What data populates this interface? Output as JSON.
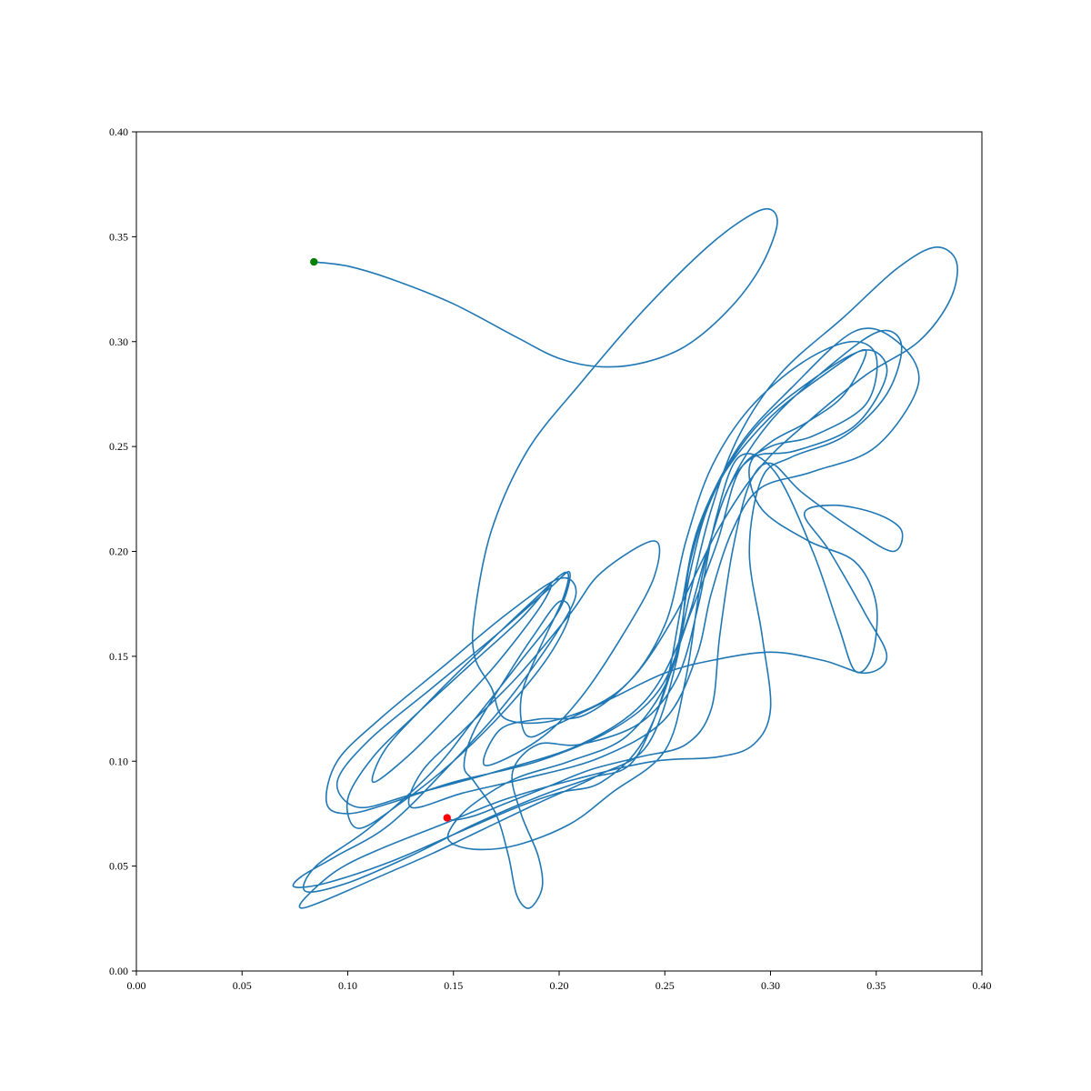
{
  "chart_data": {
    "type": "line",
    "title": "",
    "xlabel": "",
    "ylabel": "",
    "xlim": [
      0.0,
      0.4
    ],
    "ylim": [
      0.0,
      0.4
    ],
    "grid": false,
    "x_ticks": [
      "0.00",
      "0.05",
      "0.10",
      "0.15",
      "0.20",
      "0.25",
      "0.30",
      "0.35",
      "0.40"
    ],
    "y_ticks": [
      "0.00",
      "0.05",
      "0.10",
      "0.15",
      "0.20",
      "0.25",
      "0.30",
      "0.35",
      "0.40"
    ],
    "series": [
      {
        "color": "#1f77b4",
        "points": [
          [
            0.084,
            0.338
          ],
          [
            0.1,
            0.336
          ],
          [
            0.12,
            0.33
          ],
          [
            0.15,
            0.318
          ],
          [
            0.18,
            0.302
          ],
          [
            0.2,
            0.292
          ],
          [
            0.22,
            0.288
          ],
          [
            0.24,
            0.29
          ],
          [
            0.26,
            0.298
          ],
          [
            0.28,
            0.315
          ],
          [
            0.295,
            0.335
          ],
          [
            0.303,
            0.355
          ],
          [
            0.3,
            0.363
          ],
          [
            0.29,
            0.36
          ],
          [
            0.27,
            0.345
          ],
          [
            0.24,
            0.315
          ],
          [
            0.21,
            0.28
          ],
          [
            0.185,
            0.248
          ],
          [
            0.168,
            0.21
          ],
          [
            0.16,
            0.17
          ],
          [
            0.16,
            0.15
          ],
          [
            0.168,
            0.135
          ],
          [
            0.175,
            0.12
          ],
          [
            0.2,
            0.12
          ],
          [
            0.23,
            0.135
          ],
          [
            0.25,
            0.165
          ],
          [
            0.26,
            0.205
          ],
          [
            0.272,
            0.24
          ],
          [
            0.29,
            0.268
          ],
          [
            0.315,
            0.29
          ],
          [
            0.338,
            0.3
          ],
          [
            0.35,
            0.293
          ],
          [
            0.345,
            0.27
          ],
          [
            0.32,
            0.255
          ],
          [
            0.3,
            0.25
          ],
          [
            0.285,
            0.238
          ],
          [
            0.275,
            0.205
          ],
          [
            0.262,
            0.17
          ],
          [
            0.248,
            0.135
          ],
          [
            0.225,
            0.115
          ],
          [
            0.19,
            0.1
          ],
          [
            0.15,
            0.09
          ],
          [
            0.12,
            0.08
          ],
          [
            0.1,
            0.075
          ],
          [
            0.09,
            0.08
          ],
          [
            0.095,
            0.1
          ],
          [
            0.115,
            0.12
          ],
          [
            0.145,
            0.145
          ],
          [
            0.175,
            0.17
          ],
          [
            0.2,
            0.187
          ],
          [
            0.208,
            0.18
          ],
          [
            0.198,
            0.16
          ],
          [
            0.175,
            0.128
          ],
          [
            0.15,
            0.1
          ],
          [
            0.12,
            0.07
          ],
          [
            0.095,
            0.055
          ],
          [
            0.078,
            0.045
          ],
          [
            0.075,
            0.04
          ],
          [
            0.09,
            0.042
          ],
          [
            0.12,
            0.052
          ],
          [
            0.15,
            0.065
          ],
          [
            0.18,
            0.078
          ],
          [
            0.2,
            0.085
          ],
          [
            0.22,
            0.09
          ],
          [
            0.24,
            0.11
          ],
          [
            0.255,
            0.15
          ],
          [
            0.262,
            0.19
          ],
          [
            0.272,
            0.225
          ],
          [
            0.292,
            0.258
          ],
          [
            0.32,
            0.282
          ],
          [
            0.345,
            0.296
          ],
          [
            0.355,
            0.285
          ],
          [
            0.34,
            0.26
          ],
          [
            0.312,
            0.248
          ],
          [
            0.292,
            0.245
          ],
          [
            0.28,
            0.23
          ],
          [
            0.27,
            0.2
          ],
          [
            0.258,
            0.16
          ],
          [
            0.24,
            0.128
          ],
          [
            0.21,
            0.108
          ],
          [
            0.17,
            0.095
          ],
          [
            0.13,
            0.084
          ],
          [
            0.105,
            0.078
          ],
          [
            0.095,
            0.09
          ],
          [
            0.11,
            0.11
          ],
          [
            0.14,
            0.135
          ],
          [
            0.17,
            0.16
          ],
          [
            0.195,
            0.182
          ],
          [
            0.205,
            0.19
          ],
          [
            0.2,
            0.172
          ],
          [
            0.182,
            0.148
          ],
          [
            0.16,
            0.12
          ],
          [
            0.14,
            0.095
          ],
          [
            0.11,
            0.068
          ],
          [
            0.085,
            0.05
          ],
          [
            0.08,
            0.038
          ],
          [
            0.1,
            0.042
          ],
          [
            0.13,
            0.055
          ],
          [
            0.16,
            0.07
          ],
          [
            0.19,
            0.083
          ],
          [
            0.215,
            0.092
          ],
          [
            0.235,
            0.1
          ],
          [
            0.25,
            0.135
          ],
          [
            0.258,
            0.175
          ],
          [
            0.266,
            0.212
          ],
          [
            0.285,
            0.25
          ],
          [
            0.31,
            0.278
          ],
          [
            0.34,
            0.305
          ],
          [
            0.36,
            0.3
          ],
          [
            0.37,
            0.28
          ],
          [
            0.35,
            0.25
          ],
          [
            0.32,
            0.238
          ],
          [
            0.295,
            0.23
          ],
          [
            0.282,
            0.21
          ],
          [
            0.272,
            0.18
          ],
          [
            0.265,
            0.15
          ],
          [
            0.25,
            0.12
          ],
          [
            0.22,
            0.102
          ],
          [
            0.185,
            0.092
          ],
          [
            0.155,
            0.085
          ],
          [
            0.13,
            0.078
          ],
          [
            0.135,
            0.095
          ],
          [
            0.155,
            0.115
          ],
          [
            0.18,
            0.14
          ],
          [
            0.205,
            0.17
          ],
          [
            0.22,
            0.19
          ],
          [
            0.245,
            0.205
          ],
          [
            0.245,
            0.188
          ],
          [
            0.23,
            0.16
          ],
          [
            0.21,
            0.13
          ],
          [
            0.19,
            0.11
          ],
          [
            0.165,
            0.098
          ],
          [
            0.172,
            0.115
          ],
          [
            0.19,
            0.12
          ],
          [
            0.212,
            0.122
          ],
          [
            0.235,
            0.14
          ],
          [
            0.255,
            0.17
          ],
          [
            0.275,
            0.21
          ],
          [
            0.295,
            0.24
          ],
          [
            0.318,
            0.262
          ],
          [
            0.345,
            0.284
          ],
          [
            0.37,
            0.3
          ],
          [
            0.385,
            0.32
          ],
          [
            0.388,
            0.338
          ],
          [
            0.378,
            0.345
          ],
          [
            0.36,
            0.335
          ],
          [
            0.335,
            0.312
          ],
          [
            0.305,
            0.285
          ],
          [
            0.285,
            0.255
          ],
          [
            0.272,
            0.22
          ],
          [
            0.262,
            0.18
          ],
          [
            0.252,
            0.14
          ],
          [
            0.232,
            0.112
          ],
          [
            0.205,
            0.1
          ],
          [
            0.18,
            0.092
          ],
          [
            0.16,
            0.08
          ],
          [
            0.15,
            0.07
          ],
          [
            0.148,
            0.062
          ],
          [
            0.16,
            0.058
          ],
          [
            0.18,
            0.06
          ],
          [
            0.205,
            0.07
          ],
          [
            0.225,
            0.085
          ],
          [
            0.25,
            0.105
          ],
          [
            0.26,
            0.14
          ],
          [
            0.268,
            0.19
          ],
          [
            0.28,
            0.23
          ],
          [
            0.3,
            0.262
          ],
          [
            0.33,
            0.29
          ],
          [
            0.352,
            0.305
          ],
          [
            0.362,
            0.298
          ],
          [
            0.355,
            0.275
          ],
          [
            0.335,
            0.255
          ],
          [
            0.31,
            0.245
          ],
          [
            0.296,
            0.235
          ],
          [
            0.29,
            0.2
          ],
          [
            0.296,
            0.16
          ],
          [
            0.3,
            0.125
          ],
          [
            0.292,
            0.108
          ],
          [
            0.275,
            0.102
          ],
          [
            0.245,
            0.1
          ],
          [
            0.21,
            0.092
          ],
          [
            0.175,
            0.082
          ],
          [
            0.145,
            0.07
          ],
          [
            0.115,
            0.058
          ],
          [
            0.095,
            0.048
          ],
          [
            0.08,
            0.035
          ],
          [
            0.078,
            0.03
          ],
          [
            0.09,
            0.034
          ],
          [
            0.115,
            0.045
          ],
          [
            0.14,
            0.056
          ],
          [
            0.165,
            0.068
          ],
          [
            0.19,
            0.08
          ],
          [
            0.218,
            0.093
          ],
          [
            0.242,
            0.108
          ],
          [
            0.256,
            0.15
          ],
          [
            0.262,
            0.195
          ],
          [
            0.275,
            0.232
          ],
          [
            0.298,
            0.262
          ],
          [
            0.325,
            0.284
          ],
          [
            0.345,
            0.296
          ],
          [
            0.335,
            0.275
          ],
          [
            0.318,
            0.262
          ],
          [
            0.3,
            0.252
          ],
          [
            0.29,
            0.24
          ],
          [
            0.296,
            0.22
          ],
          [
            0.318,
            0.205
          ],
          [
            0.34,
            0.195
          ],
          [
            0.35,
            0.175
          ],
          [
            0.348,
            0.15
          ],
          [
            0.34,
            0.143
          ],
          [
            0.332,
            0.165
          ],
          [
            0.32,
            0.2
          ],
          [
            0.302,
            0.238
          ],
          [
            0.285,
            0.245
          ],
          [
            0.274,
            0.215
          ],
          [
            0.266,
            0.175
          ],
          [
            0.256,
            0.14
          ],
          [
            0.238,
            0.118
          ],
          [
            0.21,
            0.108
          ],
          [
            0.19,
            0.108
          ],
          [
            0.178,
            0.095
          ],
          [
            0.182,
            0.075
          ],
          [
            0.19,
            0.055
          ],
          [
            0.192,
            0.04
          ],
          [
            0.186,
            0.03
          ],
          [
            0.18,
            0.036
          ],
          [
            0.176,
            0.055
          ],
          [
            0.17,
            0.075
          ],
          [
            0.16,
            0.09
          ],
          [
            0.155,
            0.098
          ],
          [
            0.16,
            0.115
          ],
          [
            0.175,
            0.14
          ],
          [
            0.188,
            0.16
          ],
          [
            0.2,
            0.176
          ],
          [
            0.205,
            0.17
          ],
          [
            0.195,
            0.15
          ],
          [
            0.175,
            0.125
          ],
          [
            0.15,
            0.1
          ],
          [
            0.125,
            0.08
          ],
          [
            0.105,
            0.068
          ],
          [
            0.1,
            0.082
          ],
          [
            0.112,
            0.102
          ],
          [
            0.132,
            0.122
          ],
          [
            0.158,
            0.146
          ],
          [
            0.182,
            0.168
          ],
          [
            0.196,
            0.184
          ],
          [
            0.19,
            0.172
          ],
          [
            0.17,
            0.146
          ],
          [
            0.148,
            0.122
          ],
          [
            0.128,
            0.102
          ],
          [
            0.112,
            0.09
          ],
          [
            0.118,
            0.106
          ],
          [
            0.138,
            0.128
          ],
          [
            0.162,
            0.152
          ],
          [
            0.186,
            0.175
          ],
          [
            0.203,
            0.19
          ],
          [
            0.202,
            0.178
          ],
          [
            0.19,
            0.152
          ],
          [
            0.182,
            0.13
          ],
          [
            0.185,
            0.112
          ],
          [
            0.2,
            0.118
          ],
          [
            0.225,
            0.13
          ],
          [
            0.25,
            0.142
          ],
          [
            0.272,
            0.148
          ],
          [
            0.3,
            0.152
          ],
          [
            0.325,
            0.148
          ],
          [
            0.345,
            0.142
          ],
          [
            0.355,
            0.15
          ],
          [
            0.345,
            0.17
          ],
          [
            0.328,
            0.2
          ],
          [
            0.316,
            0.218
          ],
          [
            0.33,
            0.222
          ],
          [
            0.35,
            0.218
          ],
          [
            0.362,
            0.21
          ],
          [
            0.358,
            0.2
          ],
          [
            0.34,
            0.21
          ],
          [
            0.315,
            0.228
          ],
          [
            0.3,
            0.242
          ],
          [
            0.29,
            0.232
          ],
          [
            0.282,
            0.2
          ],
          [
            0.276,
            0.16
          ],
          [
            0.272,
            0.125
          ],
          [
            0.26,
            0.108
          ],
          [
            0.238,
            0.102
          ],
          [
            0.215,
            0.096
          ],
          [
            0.195,
            0.088
          ],
          [
            0.175,
            0.08
          ],
          [
            0.16,
            0.074
          ],
          [
            0.15,
            0.072
          ],
          [
            0.147,
            0.073
          ]
        ]
      }
    ],
    "markers": [
      {
        "label": "start",
        "x": 0.084,
        "y": 0.338,
        "color": "#008000"
      },
      {
        "label": "end",
        "x": 0.147,
        "y": 0.073,
        "color": "#ff0000"
      }
    ]
  }
}
